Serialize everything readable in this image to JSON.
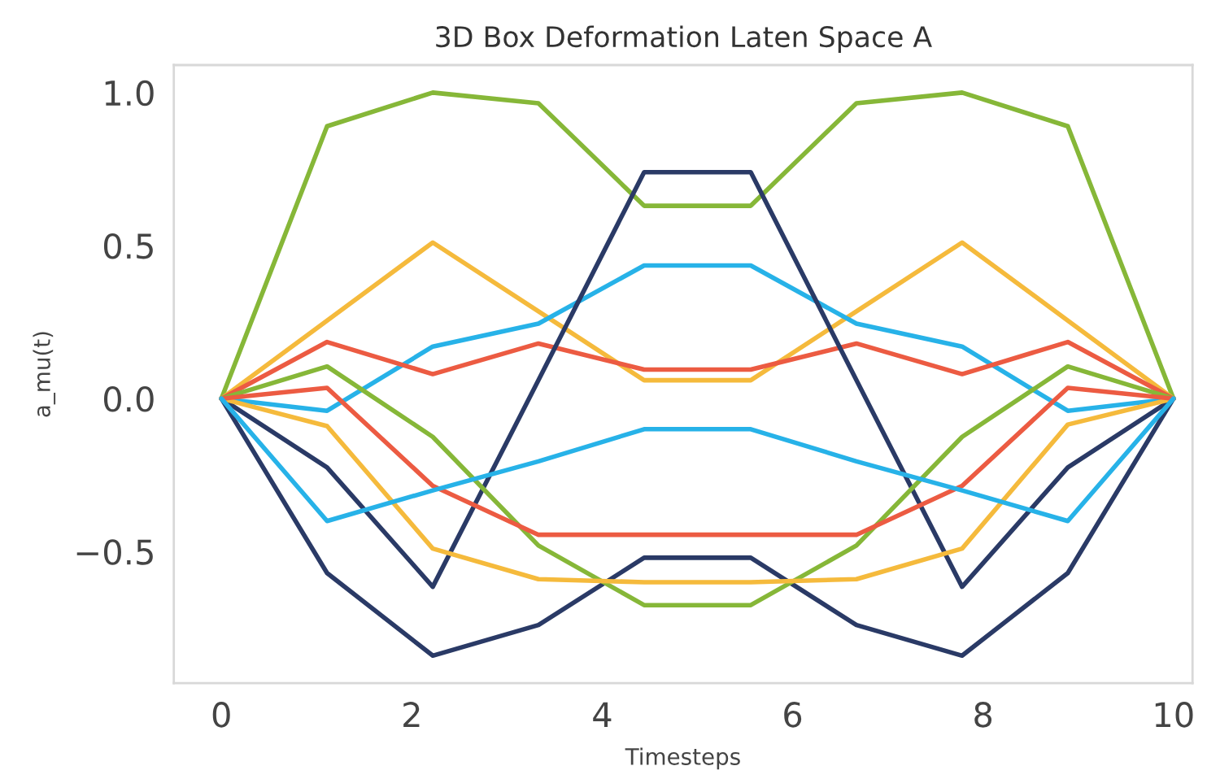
{
  "chart_data": {
    "type": "line",
    "title": "3D Box Deformation Laten Space A",
    "xlabel": "Timesteps",
    "ylabel": "a_mu(t)",
    "x": [
      0,
      1.11,
      2.22,
      3.33,
      4.44,
      5.56,
      6.67,
      7.78,
      8.89,
      10
    ],
    "series": [
      {
        "color": "#86b738",
        "values": [
          0,
          0.89,
          1.0,
          0.965,
          0.63,
          0.63,
          0.965,
          1.0,
          0.89,
          0
        ]
      },
      {
        "color": "#f5ba3c",
        "values": [
          0,
          0.255,
          0.51,
          0.285,
          0.06,
          0.06,
          0.285,
          0.51,
          0.255,
          0
        ]
      },
      {
        "color": "#27b2e8",
        "values": [
          0,
          -0.04,
          0.17,
          0.245,
          0.435,
          0.435,
          0.245,
          0.17,
          -0.04,
          0
        ]
      },
      {
        "color": "#ec5b42",
        "values": [
          0,
          0.185,
          0.08,
          0.18,
          0.095,
          0.095,
          0.18,
          0.08,
          0.185,
          0
        ]
      },
      {
        "color": "#2a3a66",
        "values": [
          0,
          -0.225,
          -0.615,
          0.06,
          0.74,
          0.74,
          0.06,
          -0.615,
          -0.225,
          0
        ]
      },
      {
        "color": "#2a3a66",
        "values": [
          0,
          -0.57,
          -0.84,
          -0.74,
          -0.52,
          -0.52,
          -0.74,
          -0.84,
          -0.57,
          0
        ]
      },
      {
        "color": "#86b738",
        "values": [
          0,
          0.105,
          -0.125,
          -0.48,
          -0.675,
          -0.675,
          -0.48,
          -0.125,
          0.105,
          0
        ]
      },
      {
        "color": "#f5ba3c",
        "values": [
          0,
          -0.09,
          -0.49,
          -0.59,
          -0.6,
          -0.6,
          -0.59,
          -0.49,
          -0.085,
          0
        ]
      },
      {
        "color": "#ec5b42",
        "values": [
          0,
          0.035,
          -0.285,
          -0.445,
          -0.445,
          -0.445,
          -0.445,
          -0.285,
          0.035,
          0
        ]
      },
      {
        "color": "#27b2e8",
        "values": [
          0,
          -0.4,
          -0.3,
          -0.205,
          -0.1,
          -0.1,
          -0.205,
          -0.3,
          -0.4,
          0
        ]
      }
    ],
    "xlim": [
      -0.5,
      10.2
    ],
    "ylim": [
      -0.93,
      1.09
    ],
    "xticks": [
      0,
      2,
      4,
      6,
      8,
      10
    ],
    "yticks": [
      {
        "value": -0.5,
        "label": "−0.5"
      },
      {
        "value": 0.0,
        "label": "0.0"
      },
      {
        "value": 0.5,
        "label": "0.5"
      },
      {
        "value": 1.0,
        "label": "1.0"
      }
    ],
    "line_style": "solid"
  }
}
